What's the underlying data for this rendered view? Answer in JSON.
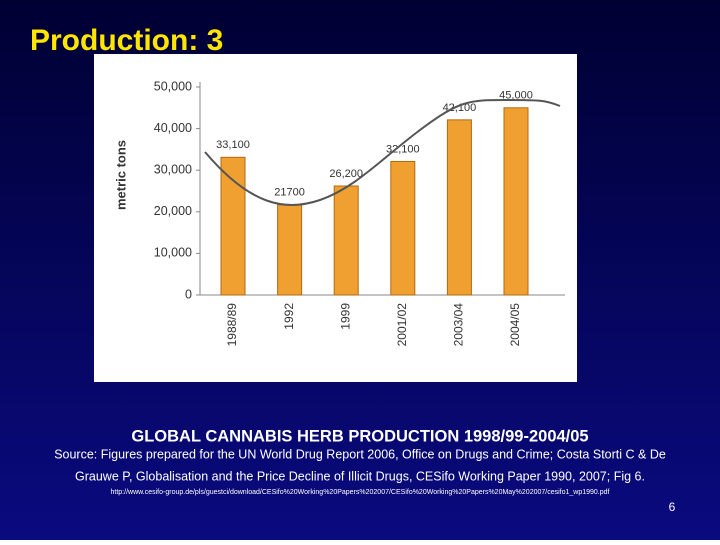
{
  "slide": {
    "title": "Production: 3",
    "caption": "GLOBAL CANNABIS HERB PRODUCTION 1998/99-2004/05",
    "source": [
      "Source: Figures prepared for the UN World Drug Report 2006, Office on Drugs and Crime; Costa Storti C & De",
      "Grauwe P, Globalisation and the Price Decline of Illicit Drugs, CESifo Working Paper 1990, 2007; Fig 6."
    ],
    "url": "http://www.cesifo-group.de/pls/guestci/download/CESifo%20Working%20Papers%202007/CESifo%20Working%20Papers%20May%202007/cesifo1_wp1990.pdf",
    "page_number": "6"
  },
  "chart_data": {
    "type": "bar",
    "y_label": "metric tons",
    "categories": [
      "1988/89",
      "1992",
      "1999",
      "2001/02",
      "2003/04",
      "2004/05"
    ],
    "values": [
      33100,
      21700,
      26200,
      32100,
      42100,
      45000
    ],
    "value_labels": [
      "33,100",
      "21700",
      "26,200",
      "32,100",
      "42,100",
      "45,000"
    ],
    "color": "#f0a030",
    "ylim": [
      0,
      50000
    ],
    "yticks": [
      0,
      {
        "value": 10000,
        "label": "10,000"
      },
      {
        "value": 20000,
        "label": "20,000"
      },
      {
        "value": 30000,
        "label": "30,000"
      },
      {
        "value": 40000,
        "label": "40,000"
      },
      {
        "value": 50000,
        "label": "50,000"
      }
    ]
  }
}
